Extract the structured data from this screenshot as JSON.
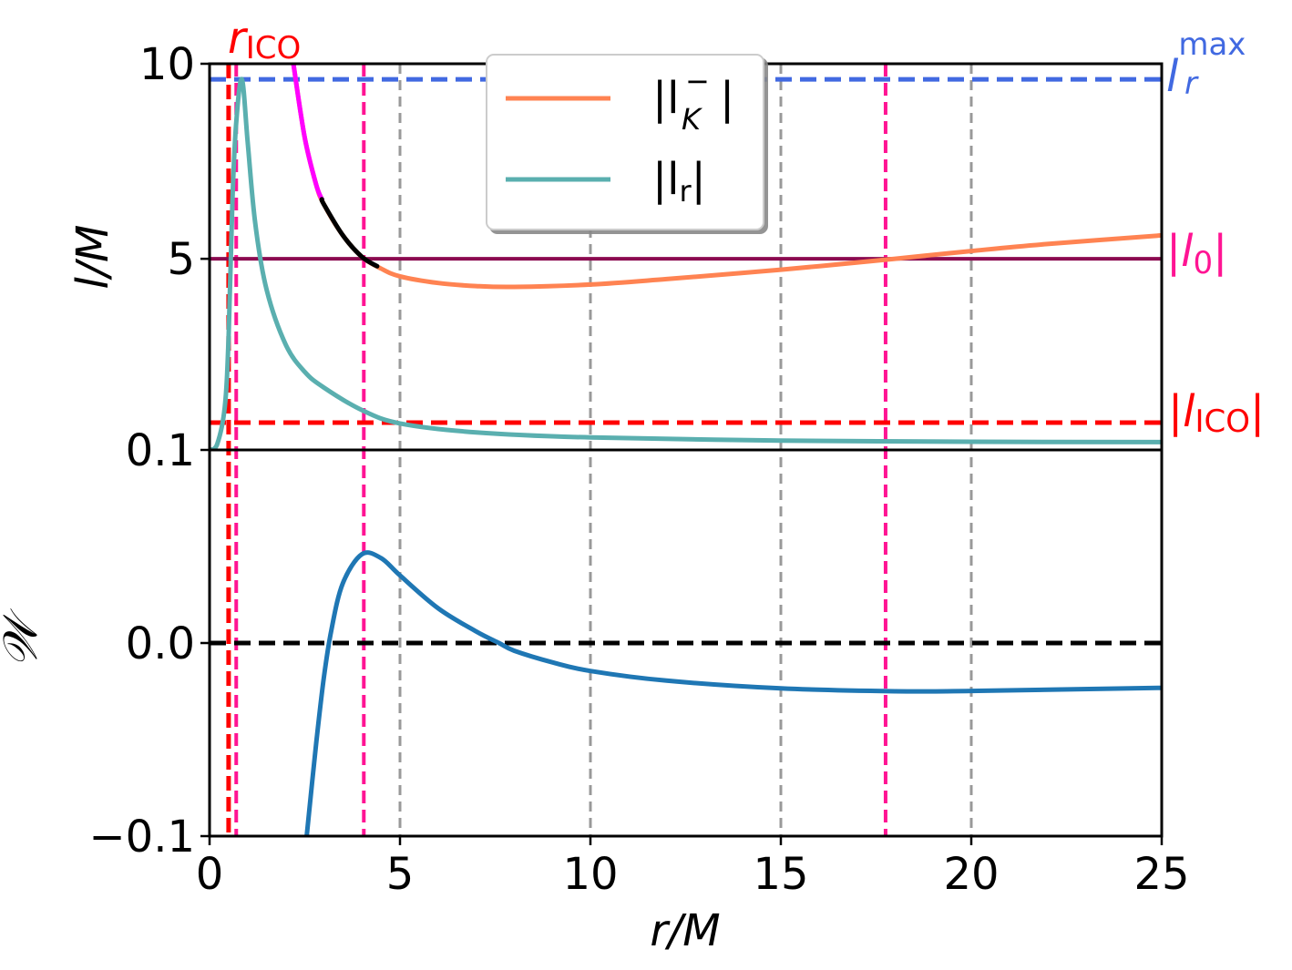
{
  "chart_data": [
    {
      "type": "line",
      "panel": "top",
      "ylabel": "l/M",
      "ylim": [
        0.1,
        10
      ],
      "xlim": [
        0,
        25
      ],
      "y_ticks": [
        "10",
        "5",
        "0.1"
      ],
      "y_tick_values": [
        10,
        5,
        0.1
      ],
      "legend": {
        "placement": "top-center",
        "entries": [
          {
            "label_main": "|l",
            "label_sub": "K",
            "label_sup": "−",
            "label_close": "|",
            "color": "#ff8352"
          },
          {
            "label_main": "|l",
            "label_sub": "r",
            "label_close": "|",
            "color": "#5aafaf"
          }
        ]
      },
      "series": [
        {
          "name": "|l_K^-|",
          "color": "#ff8352",
          "highlight_segments": [
            {
              "x_range": [
                2.2,
                2.95
              ],
              "color": "#ff00ff"
            },
            {
              "x_range": [
                2.95,
                4.4
              ],
              "color": "#000000"
            }
          ],
          "x": [
            2.2,
            2.5,
            2.8,
            3.0,
            3.5,
            4.0,
            4.5,
            5,
            6,
            7,
            8,
            10,
            12,
            15,
            18,
            20,
            22,
            25
          ],
          "y": [
            10.0,
            8.1,
            6.9,
            6.4,
            5.6,
            5.05,
            4.75,
            4.55,
            4.38,
            4.3,
            4.28,
            4.34,
            4.48,
            4.72,
            5.0,
            5.2,
            5.38,
            5.6
          ]
        },
        {
          "name": "|l_r|",
          "color": "#5aafaf",
          "x": [
            0.0,
            0.2,
            0.4,
            0.5,
            0.6,
            0.7,
            0.85,
            1.0,
            1.2,
            1.5,
            2.0,
            2.5,
            3.0,
            4.0,
            5,
            7,
            10,
            15,
            20,
            25
          ],
          "y": [
            0.1,
            0.25,
            1.2,
            3.0,
            6.5,
            8.5,
            9.6,
            8.0,
            5.9,
            4.2,
            2.8,
            2.1,
            1.7,
            1.12,
            0.78,
            0.55,
            0.42,
            0.34,
            0.31,
            0.3
          ]
        }
      ],
      "reference_lines": [
        {
          "orientation": "horizontal",
          "y": 9.6,
          "color": "#4169e1",
          "style": "dashed",
          "label": "l_r^max"
        },
        {
          "orientation": "horizontal",
          "y": 5.0,
          "color": "#8b0a50",
          "style": "solid",
          "label": "|l_0|"
        },
        {
          "orientation": "horizontal",
          "y": 0.8,
          "color": "#ff0000",
          "style": "dashed",
          "label": "|l_ICO|"
        }
      ],
      "right_labels": [
        {
          "main": "l",
          "sub": "r",
          "sup": "max",
          "color": "#4169e1"
        },
        {
          "prefix": "|",
          "main": "l",
          "sub": "0",
          "suffix": "|",
          "color": "#ff1493"
        },
        {
          "prefix": "|",
          "main": "l",
          "sub": "ICO",
          "suffix": "|",
          "color": "#ff0000"
        }
      ],
      "top_label": {
        "main": "r",
        "sub": "ICO",
        "color": "#ff0000"
      }
    },
    {
      "type": "line",
      "panel": "bottom",
      "ylabel": "𝒲",
      "xlabel": "r/M",
      "ylim": [
        -0.1,
        0.1
      ],
      "xlim": [
        0,
        25
      ],
      "x_ticks": [
        "0",
        "5",
        "10",
        "15",
        "20",
        "25"
      ],
      "x_tick_values": [
        0,
        5,
        10,
        15,
        20,
        25
      ],
      "y_ticks": [
        "0.0",
        "−0.1"
      ],
      "y_tick_values": [
        0.0,
        -0.1
      ],
      "series": [
        {
          "name": "W",
          "color": "#1f77b4",
          "x": [
            2.55,
            2.8,
            3.0,
            3.2,
            3.5,
            4.0,
            4.5,
            5,
            6,
            7,
            7.6,
            8,
            9,
            10,
            12,
            15,
            18,
            20,
            25
          ],
          "y": [
            -0.1,
            -0.052,
            -0.018,
            0.007,
            0.031,
            0.046,
            0.044,
            0.035,
            0.018,
            0.006,
            0.0,
            -0.004,
            -0.01,
            -0.0145,
            -0.0195,
            -0.0235,
            -0.025,
            -0.0248,
            -0.0232
          ]
        }
      ],
      "reference_lines": [
        {
          "orientation": "horizontal",
          "y": 0.0,
          "color": "#000000",
          "style": "dashed"
        }
      ]
    }
  ],
  "vertical_lines": {
    "gray_dashed_x": [
      5,
      10,
      15,
      20
    ],
    "red_dashed_x": [
      0.5
    ],
    "pink_dashed_x": [
      0.7,
      4.05,
      17.75
    ],
    "gray_color": "#999999",
    "red_color": "#ff0000",
    "pink_color": "#ff1493"
  }
}
